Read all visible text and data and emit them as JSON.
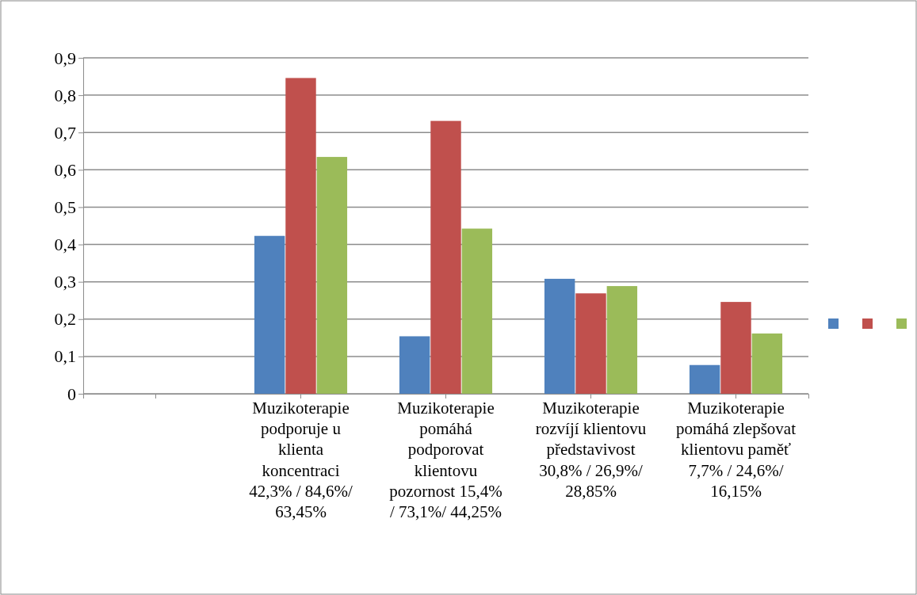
{
  "chart_data": {
    "type": "bar",
    "categories": [
      null,
      "Muzikoterapie podporuje u klienta koncentraci 42,3% / 84,6%/ 63,45%",
      "Muzikoterapie pomáhá podporovat klientovu pozornost 15,4% / 73,1%/ 44,25%",
      "Muzikoterapie rozvíjí klientovu představivost 30,8% / 26,9%/ 28,85%",
      "Muzikoterapie pomáhá zlepšovat klientovu paměť 7,7% / 24,6%/ 16,15%"
    ],
    "series": [
      {
        "color": "#4f81bd",
        "values": [
          0,
          0.423,
          0.154,
          0.308,
          0.077
        ]
      },
      {
        "color": "#c0504d",
        "values": [
          0,
          0.846,
          0.731,
          0.269,
          0.246
        ]
      },
      {
        "color": "#9bbb59",
        "values": [
          0,
          0.6345,
          0.4425,
          0.2885,
          0.1615
        ]
      }
    ],
    "ylim": [
      0,
      0.9
    ],
    "yticks": [
      0,
      {
        "value": 0.1,
        "label": "0,1"
      },
      {
        "value": 0.2,
        "label": "0,2"
      },
      {
        "value": 0.3,
        "label": "0,3"
      },
      {
        "value": 0.4,
        "label": "0,4"
      },
      {
        "value": 0.5,
        "label": "0,5"
      },
      {
        "value": 0.6,
        "label": "0,6"
      },
      {
        "value": 0.7,
        "label": "0,7"
      },
      {
        "value": 0.8,
        "label": "0,8"
      },
      {
        "value": 0.9,
        "label": "0,9"
      }
    ],
    "grid": true
  }
}
